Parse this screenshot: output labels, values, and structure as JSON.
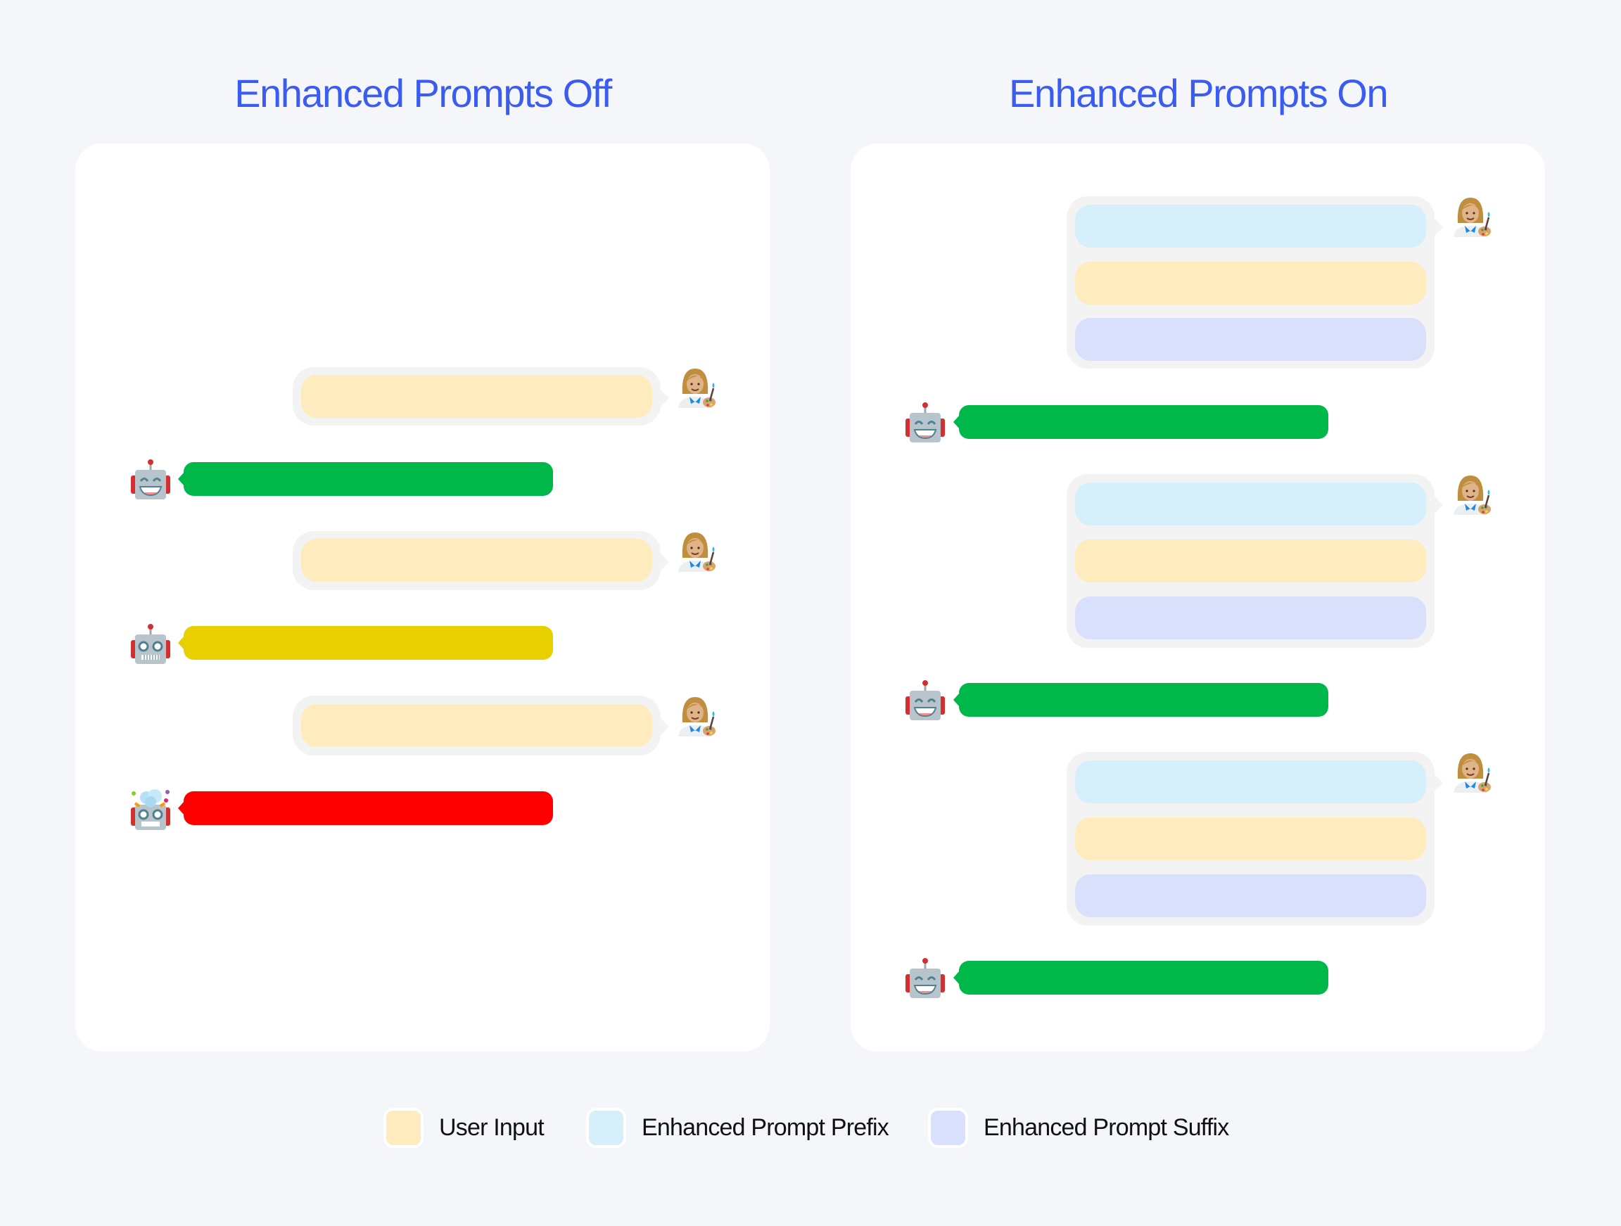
{
  "titles": {
    "off": "Enhanced Prompts Off",
    "on": "Enhanced Prompts On"
  },
  "colors": {
    "user_input": "#feebbe",
    "prefix": "#d5effb",
    "suffix": "#d9e0fb",
    "success": "#00b84a",
    "warning": "#e8cf00",
    "failure": "#fe0000",
    "title": "#3a5cf0"
  },
  "off_conversation": [
    {
      "role": "user",
      "segments": [
        "user_input"
      ]
    },
    {
      "role": "assistant",
      "status": "success"
    },
    {
      "role": "user",
      "segments": [
        "user_input"
      ]
    },
    {
      "role": "assistant",
      "status": "warning"
    },
    {
      "role": "user",
      "segments": [
        "user_input"
      ]
    },
    {
      "role": "assistant",
      "status": "failure"
    }
  ],
  "on_conversation": [
    {
      "role": "user",
      "segments": [
        "prefix",
        "user_input",
        "suffix"
      ]
    },
    {
      "role": "assistant",
      "status": "success"
    },
    {
      "role": "user",
      "segments": [
        "prefix",
        "user_input",
        "suffix"
      ]
    },
    {
      "role": "assistant",
      "status": "success"
    },
    {
      "role": "user",
      "segments": [
        "prefix",
        "user_input",
        "suffix"
      ]
    },
    {
      "role": "assistant",
      "status": "success"
    }
  ],
  "legend": [
    {
      "label": "User Input",
      "color": "#feebbe"
    },
    {
      "label": "Enhanced Prompt Prefix",
      "color": "#d5effb"
    },
    {
      "label": "Enhanced Prompt Suffix",
      "color": "#d9e0fb"
    }
  ],
  "icons": {
    "user": "woman-artist-icon",
    "assistant": "robot-icon",
    "assistant_failed": "exploding-robot-icon"
  }
}
